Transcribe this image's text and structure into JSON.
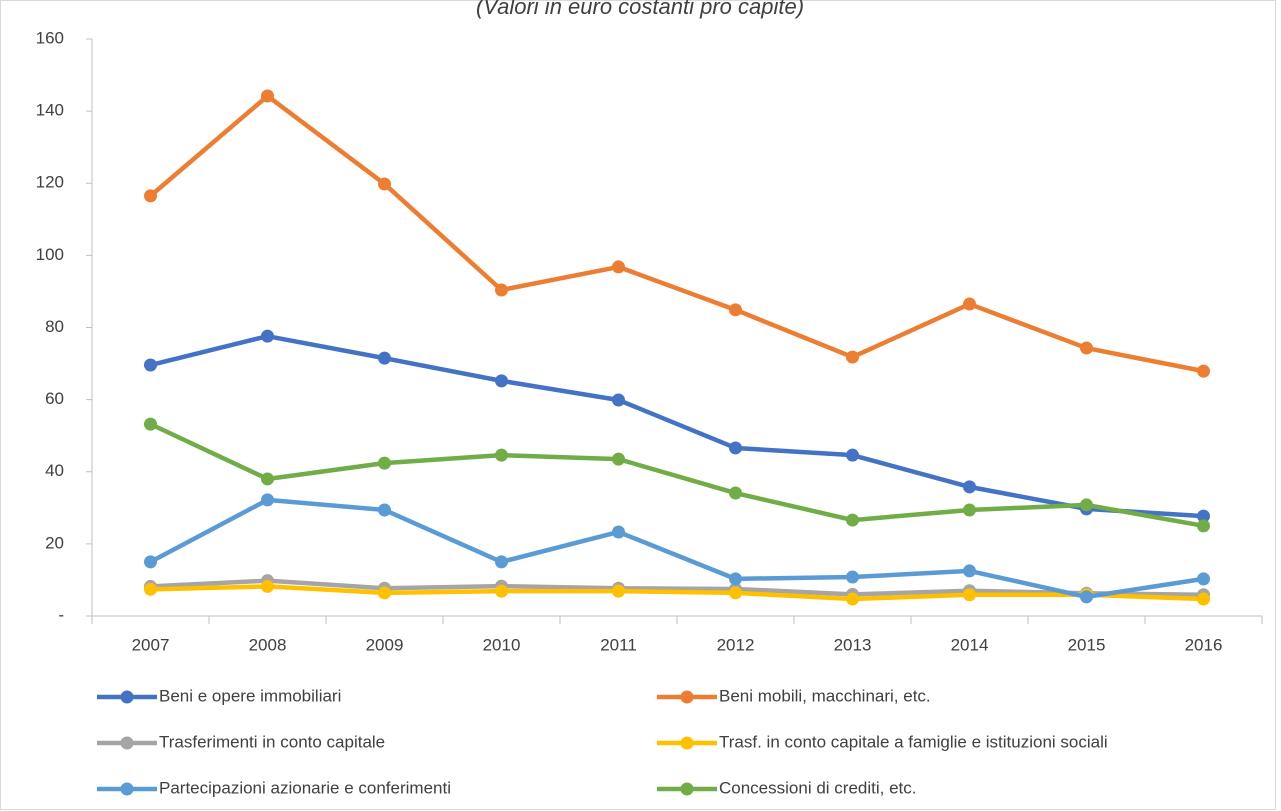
{
  "chart_data": {
    "type": "line",
    "subtitle": "(Valori in euro costanti pro capite)",
    "categories": [
      "2007",
      "2008",
      "2009",
      "2010",
      "2011",
      "2012",
      "2013",
      "2014",
      "2015",
      "2016"
    ],
    "series": [
      {
        "name": "Beni e opere immobiliari",
        "color": "#4472c4",
        "values": [
          69.6,
          77.6,
          71.5,
          65.2,
          59.9,
          46.6,
          44.6,
          35.8,
          29.7,
          27.7
        ]
      },
      {
        "name": "Beni mobili, macchinari, etc.",
        "color": "#ed7d31",
        "values": [
          116.5,
          144.2,
          119.8,
          90.4,
          96.8,
          84.9,
          71.8,
          86.5,
          74.3,
          67.9
        ]
      },
      {
        "name": "Trasferimenti in conto capitale",
        "color": "#a5a5a5",
        "values": [
          8.2,
          9.8,
          7.7,
          8.3,
          7.7,
          7.5,
          6.0,
          7.0,
          6.3,
          5.9
        ]
      },
      {
        "name": "Trasf. in conto capitale a famiglie e istituzioni sociali",
        "color": "#ffc000",
        "values": [
          7.4,
          8.2,
          6.4,
          6.9,
          6.9,
          6.4,
          4.7,
          5.9,
          5.9,
          4.7
        ]
      },
      {
        "name": "Partecipazioni azionarie e conferimenti",
        "color": "#5b9bd5",
        "values": [
          15.0,
          32.2,
          29.4,
          15.0,
          23.3,
          10.3,
          10.8,
          12.5,
          5.3,
          10.3
        ]
      },
      {
        "name": "Concessioni di crediti, etc.",
        "color": "#70ad47",
        "values": [
          53.2,
          38.0,
          42.4,
          44.6,
          43.5,
          34.1,
          26.6,
          29.4,
          30.8,
          25.0
        ]
      }
    ],
    "ylim": [
      0,
      160
    ],
    "yticks": [
      {
        "value": 0,
        "label": "-"
      },
      20,
      40,
      60,
      80,
      100,
      120,
      140,
      160
    ],
    "grid": false,
    "legend": "bottom"
  }
}
